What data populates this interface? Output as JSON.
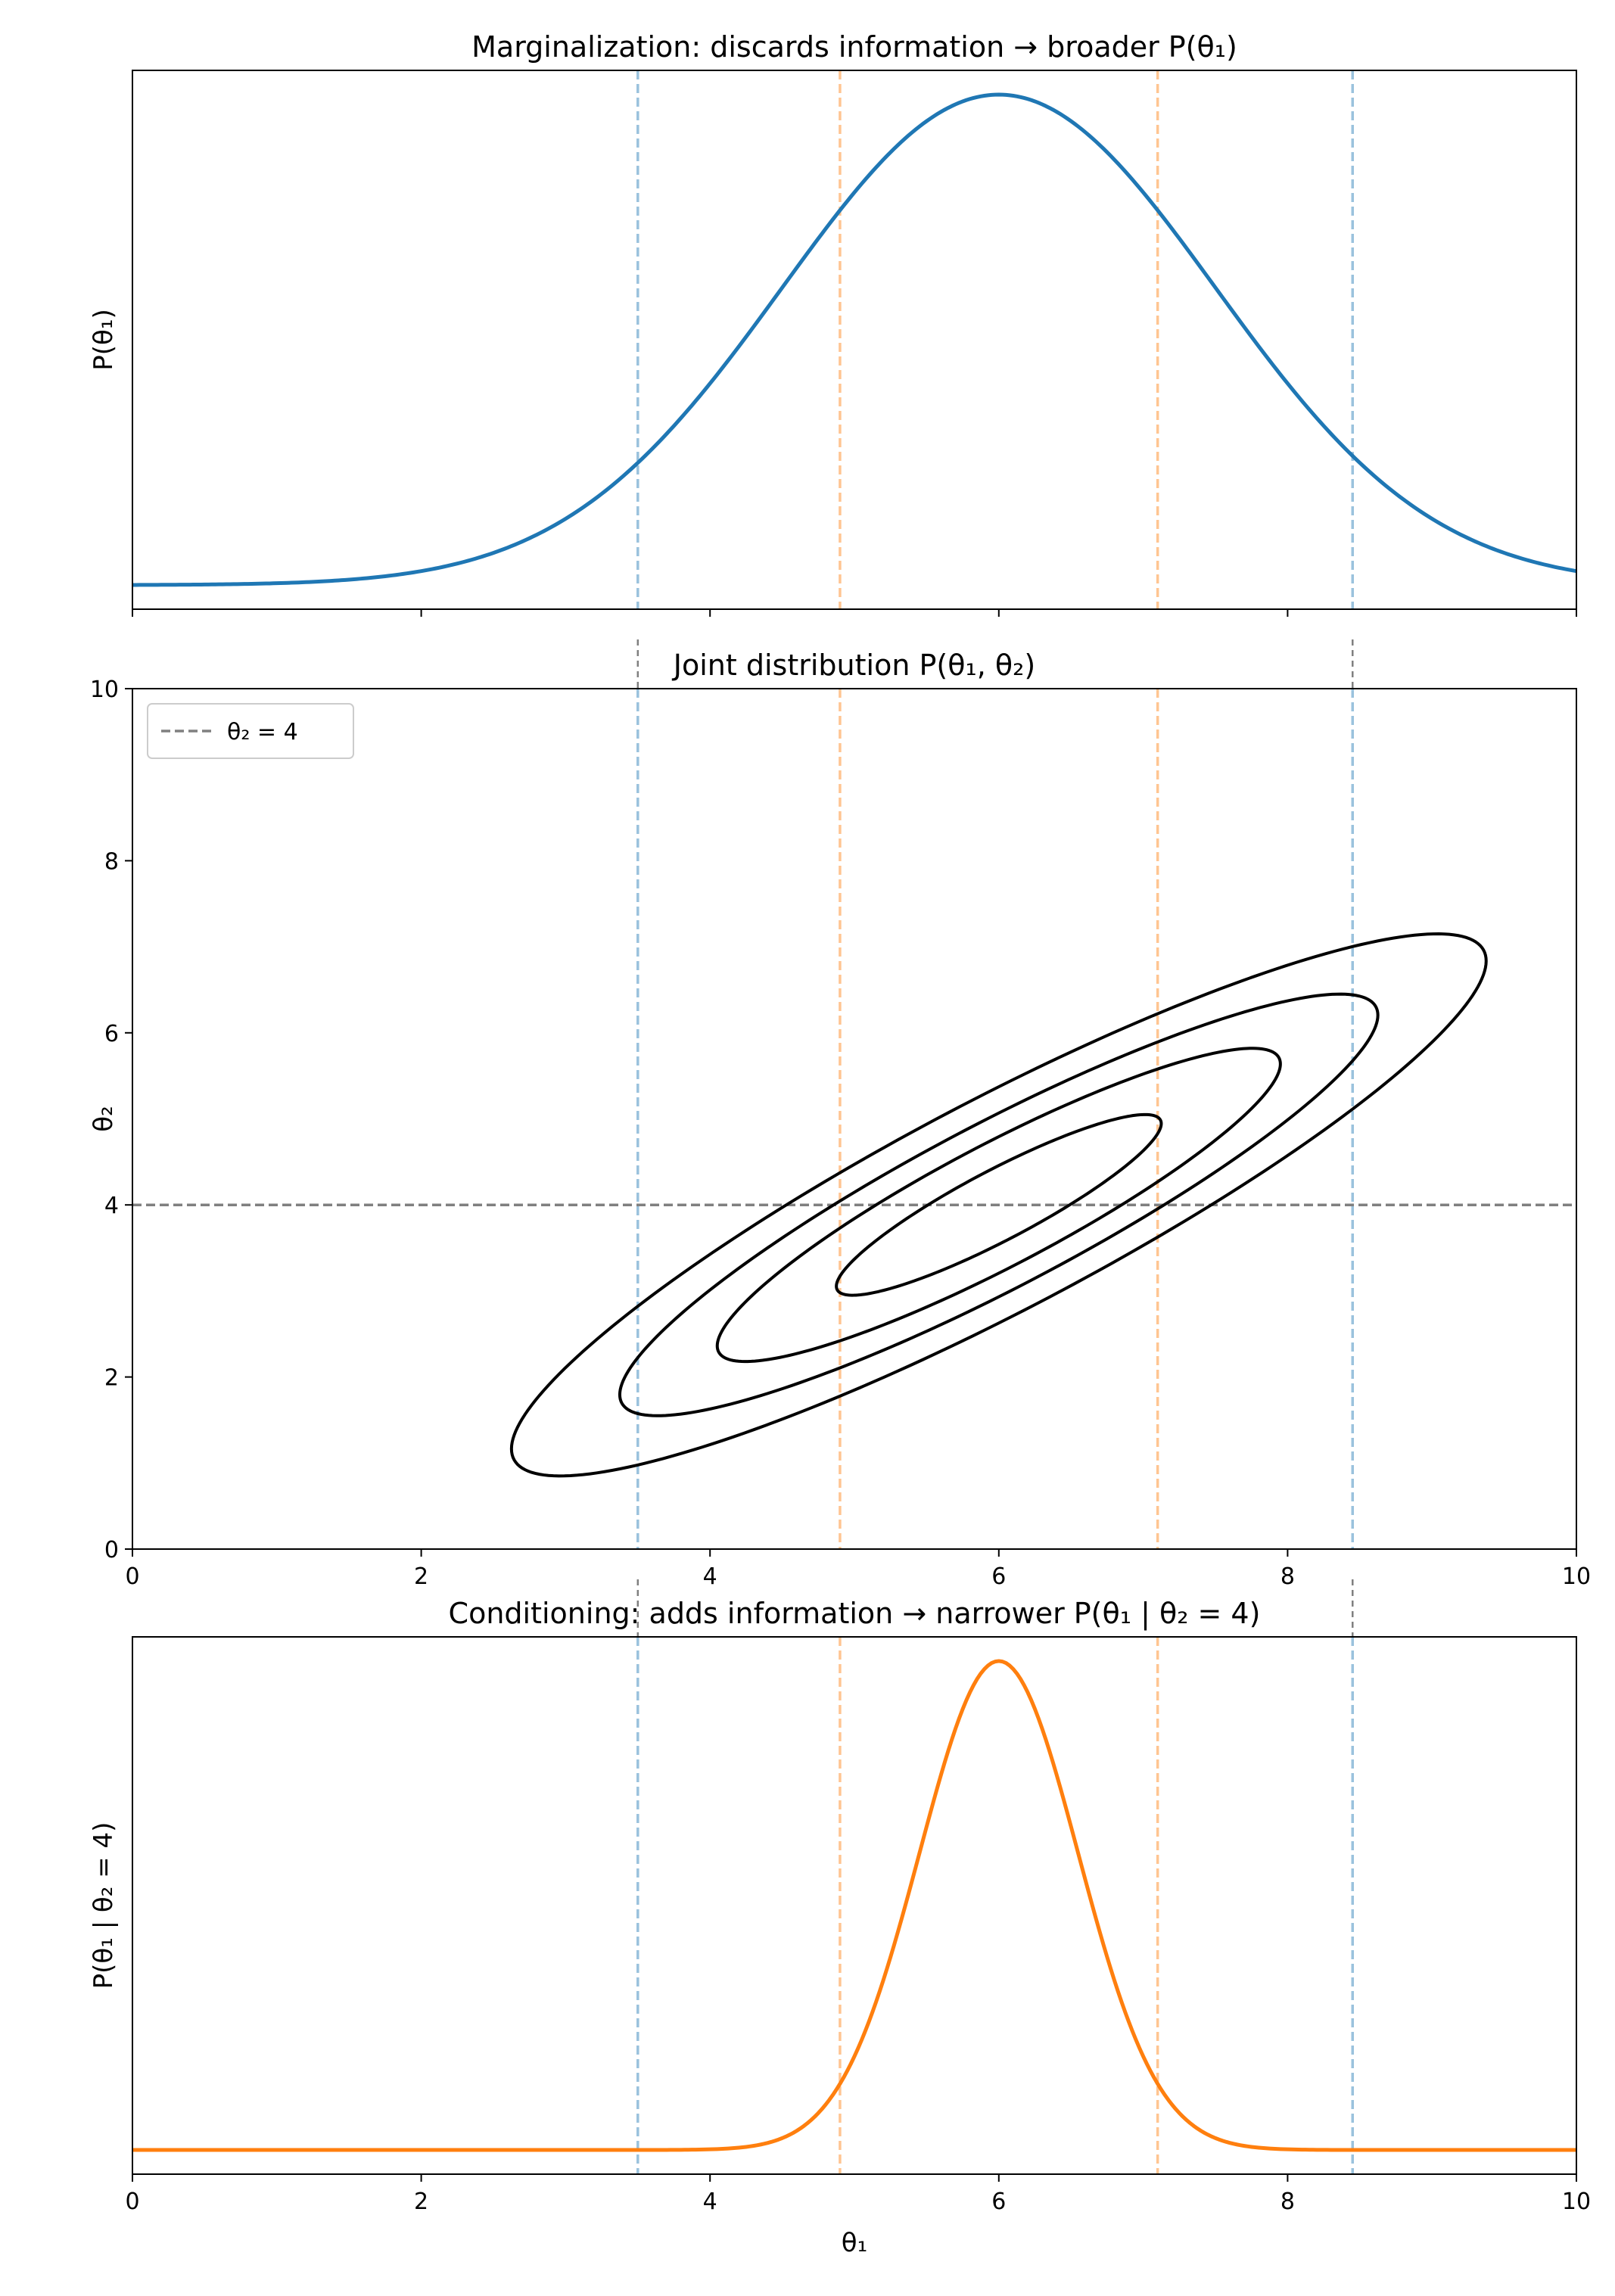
{
  "chart_data": [
    {
      "type": "line",
      "panel": "marginal",
      "title": "Marginalization: discards information → broader P(θ₁)",
      "xlabel": "",
      "ylabel": "P(θ₁)",
      "xlim": [
        0,
        10
      ],
      "yticks": "none",
      "curve": {
        "shape": "gaussian",
        "mean": 6.0,
        "sd": 1.5,
        "color": "#1f77b4"
      },
      "reference_lines": [
        {
          "x": 3.5,
          "color": "#1f77b4"
        },
        {
          "x": 4.9,
          "color": "#ff7f0e"
        },
        {
          "x": 7.1,
          "color": "#ff7f0e"
        },
        {
          "x": 8.45,
          "color": "#1f77b4"
        }
      ]
    },
    {
      "type": "contour",
      "panel": "joint",
      "title": "Joint distribution P(θ₁, θ₂)",
      "xlabel": "",
      "ylabel": "θ₂",
      "xlim": [
        0,
        10
      ],
      "ylim": [
        0,
        10
      ],
      "xticks": [
        0,
        2,
        4,
        6,
        8,
        10
      ],
      "yticks": [
        0,
        2,
        4,
        6,
        8,
        10
      ],
      "distribution": {
        "mean": [
          6.0,
          4.0
        ],
        "sd": [
          1.5,
          1.4
        ],
        "correlation": 0.9,
        "levels": 4,
        "color": "#000000"
      },
      "hline": {
        "y": 4,
        "label": "θ₂ = 4",
        "color": "#808080"
      },
      "legend": {
        "placement": "upper-left",
        "entries": [
          "θ₂ = 4"
        ]
      },
      "reference_lines": [
        {
          "x": 3.5,
          "color": "#1f77b4"
        },
        {
          "x": 4.9,
          "color": "#ff7f0e"
        },
        {
          "x": 7.1,
          "color": "#ff7f0e"
        },
        {
          "x": 8.45,
          "color": "#1f77b4"
        }
      ]
    },
    {
      "type": "line",
      "panel": "conditional",
      "title": "Conditioning: adds information → narrower P(θ₁ | θ₂ = 4)",
      "xlabel": "θ₁",
      "ylabel": "P(θ₁ | θ₂ = 4)",
      "xlim": [
        0,
        10
      ],
      "xticks": [
        0,
        2,
        4,
        6,
        8,
        10
      ],
      "yticks": "none",
      "curve": {
        "shape": "gaussian",
        "mean": 6.0,
        "sd": 0.55,
        "color": "#ff7f0e"
      },
      "reference_lines": [
        {
          "x": 3.5,
          "color": "#1f77b4"
        },
        {
          "x": 4.9,
          "color": "#ff7f0e"
        },
        {
          "x": 7.1,
          "color": "#ff7f0e"
        },
        {
          "x": 8.45,
          "color": "#1f77b4"
        }
      ]
    }
  ]
}
